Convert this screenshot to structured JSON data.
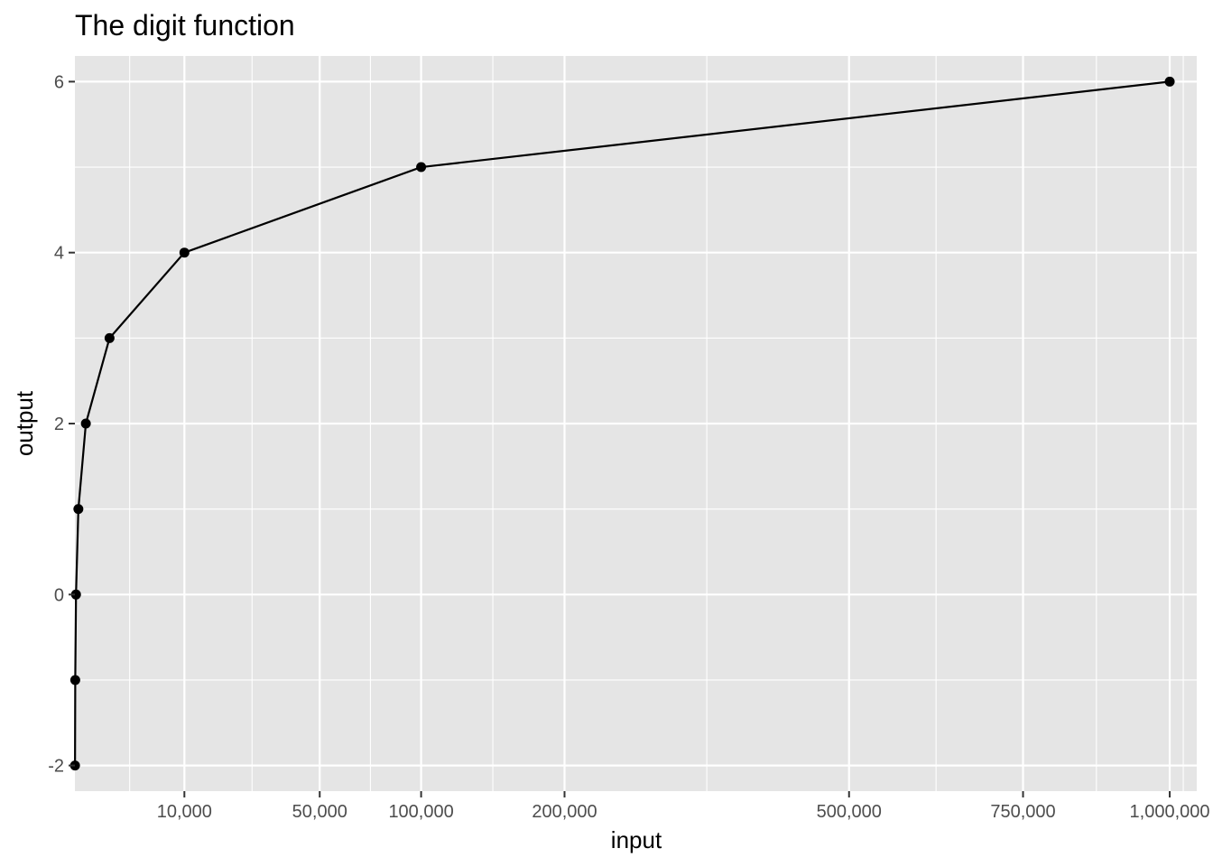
{
  "chart_data": {
    "type": "line",
    "title": "The digit function",
    "xlabel": "input",
    "ylabel": "output",
    "x_scale": "sqrt",
    "xlim": [
      0,
      1050000
    ],
    "ylim": [
      -2.3,
      6.3
    ],
    "grid": true,
    "background_color": "#e5e5e5",
    "line_color": "#000000",
    "point_color": "#000000",
    "x_ticks": [
      10000,
      50000,
      100000,
      200000,
      500000,
      750000,
      1000000
    ],
    "x_tick_labels": [
      "10,000",
      "50,000",
      "100,000",
      "200,000",
      "500,000",
      "750,000",
      "1,000,000"
    ],
    "y_ticks": [
      -2,
      0,
      2,
      4,
      6
    ],
    "y_tick_labels": [
      "-2",
      "0",
      "2",
      "4",
      "6"
    ],
    "x": [
      0.01,
      0.1,
      1,
      10,
      100,
      1000,
      10000,
      100000,
      1000000
    ],
    "y": [
      -2,
      -1,
      0,
      1,
      2,
      3,
      4,
      5,
      6
    ]
  }
}
